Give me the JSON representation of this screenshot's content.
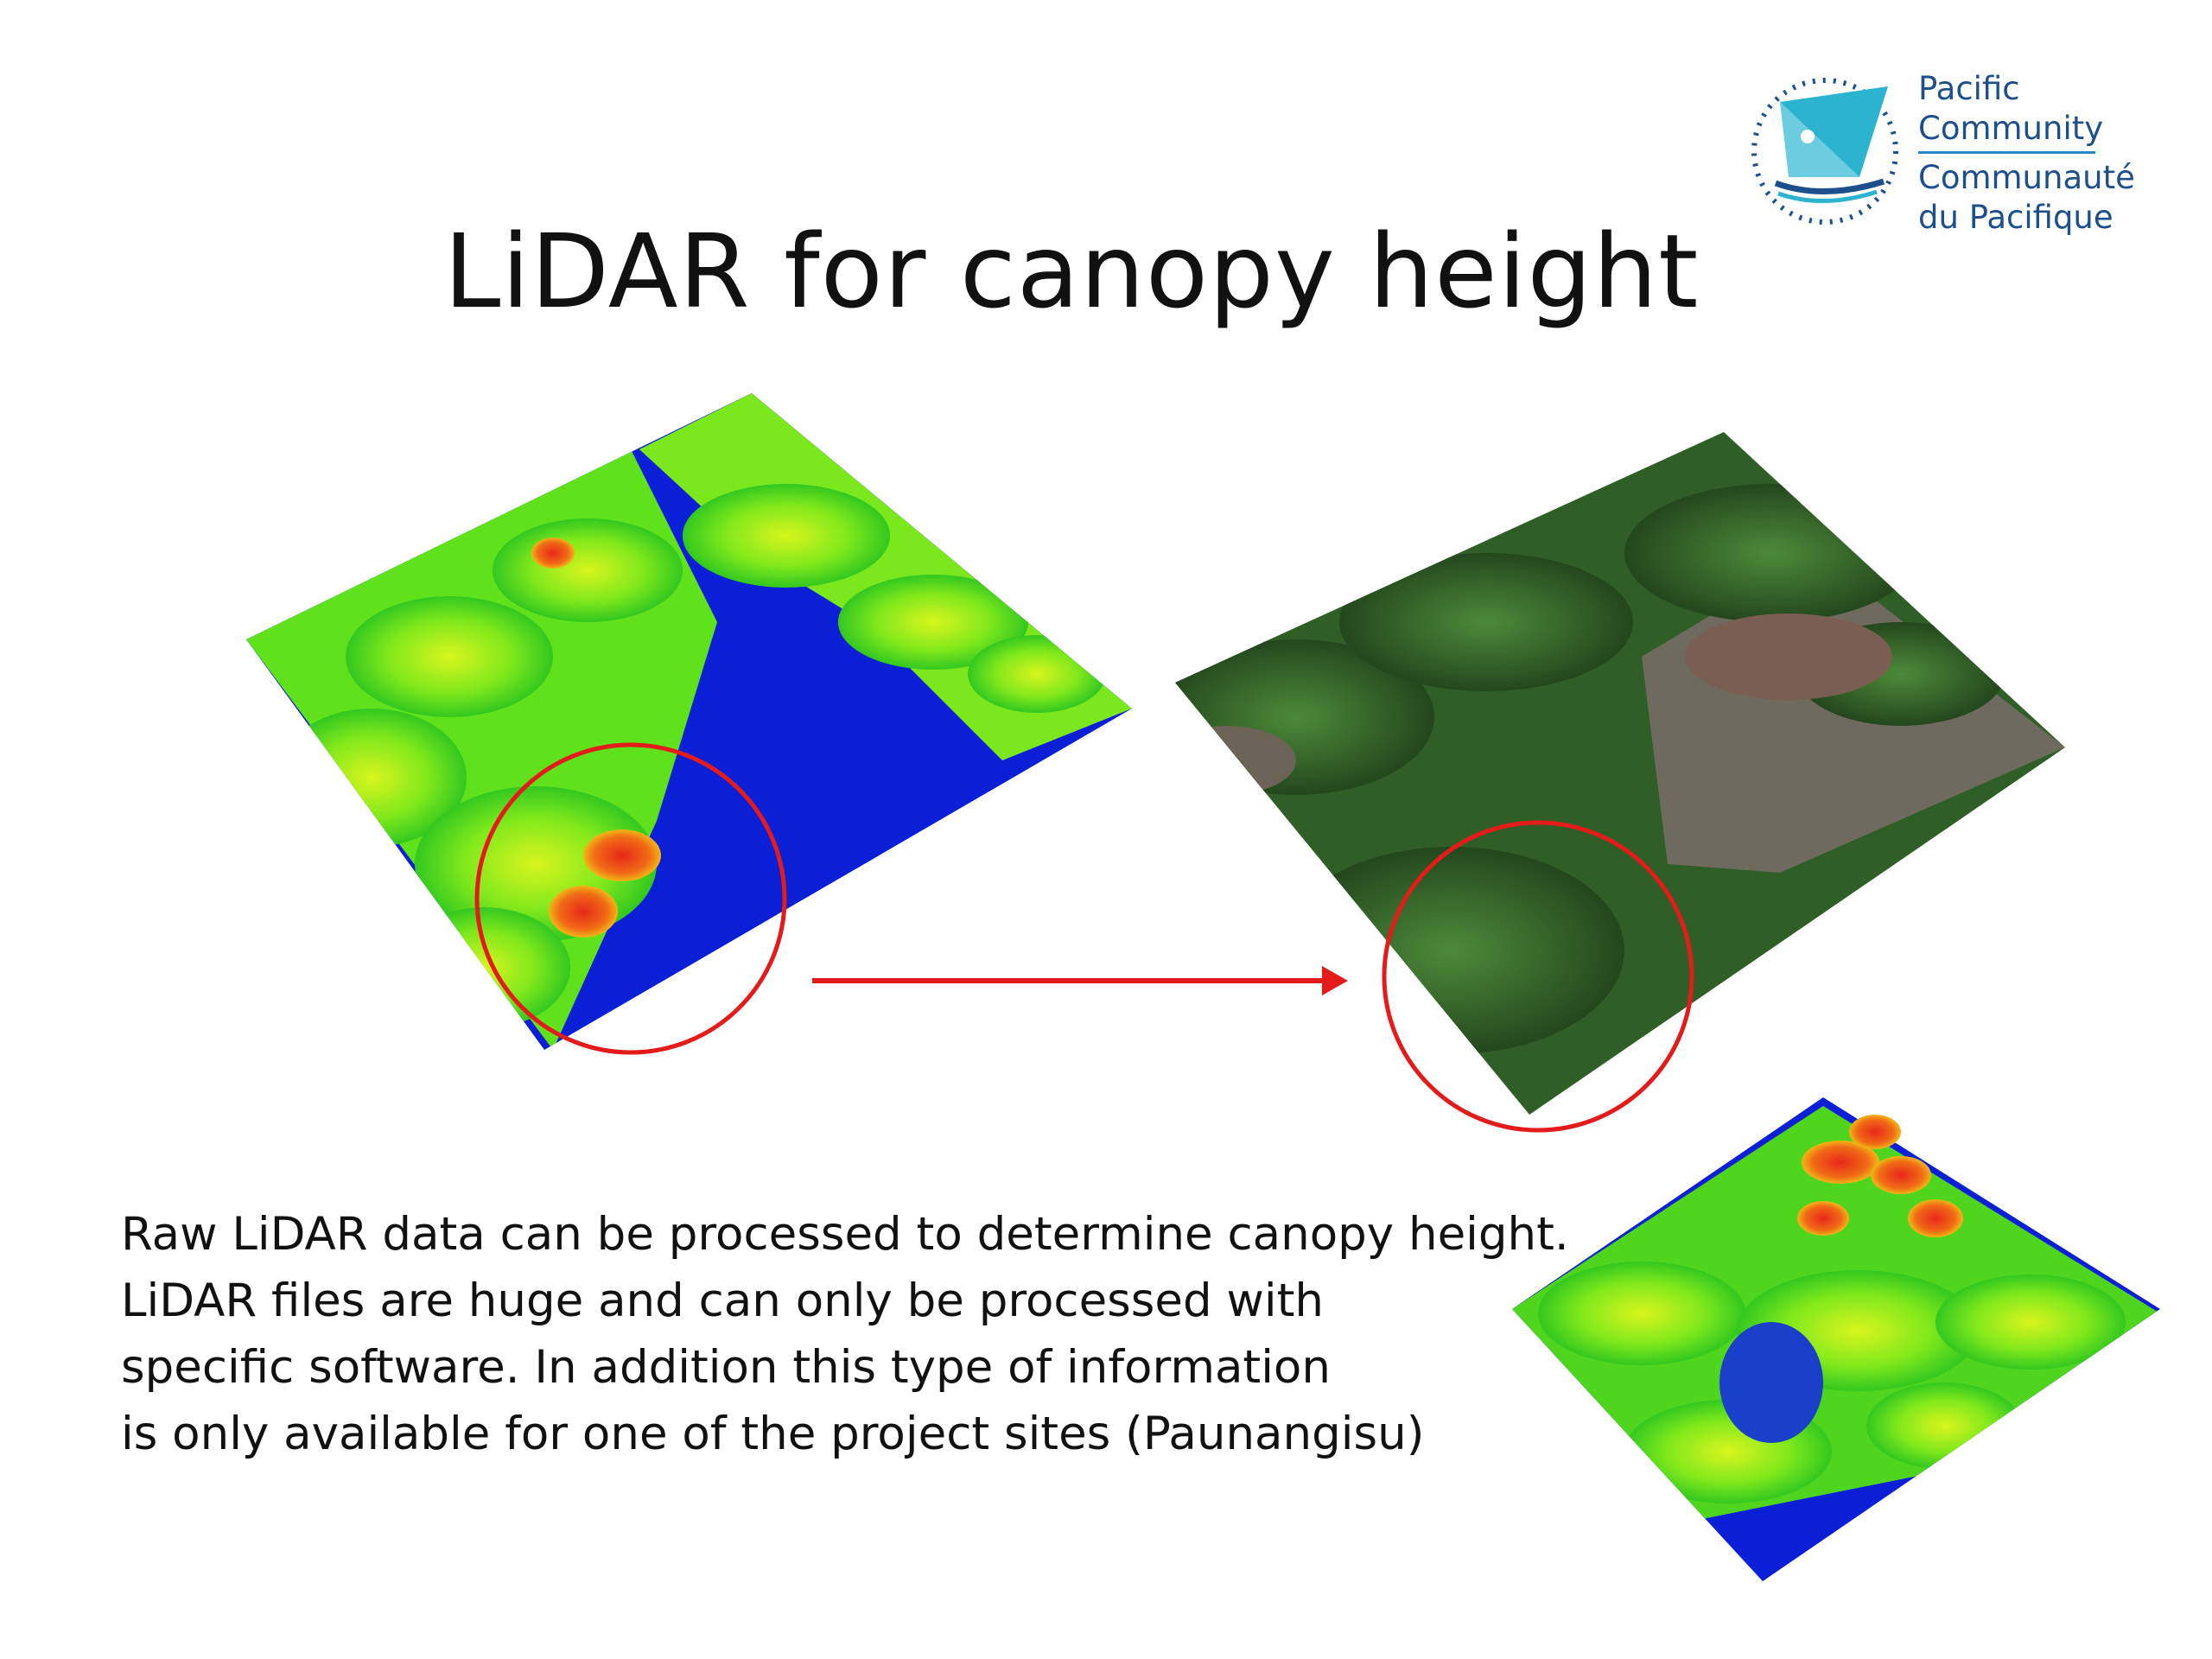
{
  "slide": {
    "title": "LiDAR for canopy height",
    "logo": {
      "line1": "Pacific",
      "line2": "Community",
      "line3": "Communauté",
      "line4": "du Pacifique"
    },
    "body_lines": [
      "Raw LiDAR data can be processed to determine canopy height.",
      "LiDAR files are huge and can only be processed with",
      "specific software. In addition this type of information",
      "is only available for one of the project sites (Paunangisu)"
    ]
  },
  "colors": {
    "lidar_blue": "#0a1fd6",
    "lidar_green": "#5fe21c",
    "lidar_yellow": "#e8f21a",
    "lidar_red": "#e0321a",
    "aerial_green": "#2f5e26",
    "highlight_red": "#e31b1b",
    "logo_blue": "#1e4f8d",
    "logo_teal": "#2bb3cf"
  },
  "icons": [
    "pacific-community-logo",
    "highlight-circle",
    "arrow-right-icon"
  ]
}
